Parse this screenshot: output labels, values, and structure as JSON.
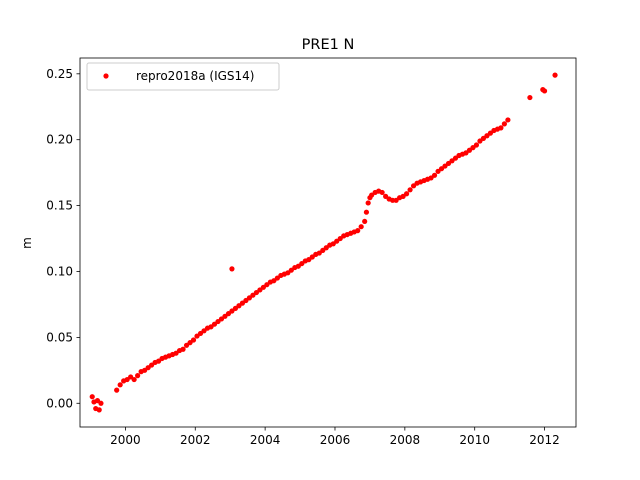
{
  "chart_data": {
    "type": "scatter",
    "title": "PRE1 N",
    "xlabel": "",
    "ylabel": "m",
    "xlim": [
      1998.7,
      2012.9
    ],
    "ylim": [
      -0.018,
      0.262
    ],
    "xticks": [
      2000,
      2002,
      2004,
      2006,
      2008,
      2010,
      2012
    ],
    "xtick_labels": [
      "2000",
      "2002",
      "2004",
      "2006",
      "2008",
      "2010",
      "2012"
    ],
    "yticks": [
      0.0,
      0.05,
      0.1,
      0.15,
      0.2,
      0.25
    ],
    "ytick_labels": [
      "0.00",
      "0.05",
      "0.10",
      "0.15",
      "0.20",
      "0.25"
    ],
    "grid": false,
    "legend_position": "top-left",
    "series": [
      {
        "name": "repro2018a (IGS14)",
        "color": "#ff0000",
        "marker": "dot",
        "points": [
          [
            1999.05,
            0.005
          ],
          [
            1999.1,
            0.001
          ],
          [
            1999.15,
            -0.004
          ],
          [
            1999.2,
            0.002
          ],
          [
            1999.25,
            -0.005
          ],
          [
            1999.3,
            0.0
          ],
          [
            1999.75,
            0.01
          ],
          [
            1999.85,
            0.014
          ],
          [
            1999.95,
            0.017
          ],
          [
            2000.05,
            0.018
          ],
          [
            2000.15,
            0.02
          ],
          [
            2000.25,
            0.018
          ],
          [
            2000.35,
            0.021
          ],
          [
            2000.45,
            0.024
          ],
          [
            2000.55,
            0.025
          ],
          [
            2000.65,
            0.027
          ],
          [
            2000.75,
            0.029
          ],
          [
            2000.85,
            0.031
          ],
          [
            2000.95,
            0.032
          ],
          [
            2001.05,
            0.034
          ],
          [
            2001.15,
            0.035
          ],
          [
            2001.25,
            0.036
          ],
          [
            2001.35,
            0.037
          ],
          [
            2001.45,
            0.038
          ],
          [
            2001.55,
            0.04
          ],
          [
            2001.65,
            0.041
          ],
          [
            2001.75,
            0.044
          ],
          [
            2001.85,
            0.046
          ],
          [
            2001.95,
            0.048
          ],
          [
            2002.05,
            0.051
          ],
          [
            2002.15,
            0.053
          ],
          [
            2002.25,
            0.055
          ],
          [
            2002.35,
            0.057
          ],
          [
            2002.45,
            0.058
          ],
          [
            2002.55,
            0.06
          ],
          [
            2002.65,
            0.062
          ],
          [
            2002.75,
            0.064
          ],
          [
            2002.85,
            0.066
          ],
          [
            2002.95,
            0.068
          ],
          [
            2003.05,
            0.102
          ],
          [
            2003.05,
            0.07
          ],
          [
            2003.15,
            0.072
          ],
          [
            2003.25,
            0.074
          ],
          [
            2003.35,
            0.076
          ],
          [
            2003.45,
            0.078
          ],
          [
            2003.55,
            0.08
          ],
          [
            2003.65,
            0.082
          ],
          [
            2003.75,
            0.084
          ],
          [
            2003.85,
            0.086
          ],
          [
            2003.95,
            0.088
          ],
          [
            2004.05,
            0.09
          ],
          [
            2004.15,
            0.092
          ],
          [
            2004.25,
            0.093
          ],
          [
            2004.35,
            0.095
          ],
          [
            2004.45,
            0.097
          ],
          [
            2004.55,
            0.098
          ],
          [
            2004.65,
            0.099
          ],
          [
            2004.75,
            0.101
          ],
          [
            2004.85,
            0.103
          ],
          [
            2004.95,
            0.104
          ],
          [
            2005.05,
            0.106
          ],
          [
            2005.15,
            0.108
          ],
          [
            2005.25,
            0.109
          ],
          [
            2005.35,
            0.111
          ],
          [
            2005.45,
            0.113
          ],
          [
            2005.55,
            0.114
          ],
          [
            2005.65,
            0.116
          ],
          [
            2005.75,
            0.118
          ],
          [
            2005.85,
            0.12
          ],
          [
            2005.95,
            0.121
          ],
          [
            2006.05,
            0.123
          ],
          [
            2006.15,
            0.125
          ],
          [
            2006.25,
            0.127
          ],
          [
            2006.35,
            0.128
          ],
          [
            2006.45,
            0.129
          ],
          [
            2006.55,
            0.13
          ],
          [
            2006.65,
            0.131
          ],
          [
            2006.75,
            0.134
          ],
          [
            2006.85,
            0.138
          ],
          [
            2006.9,
            0.145
          ],
          [
            2006.95,
            0.152
          ],
          [
            2007.0,
            0.156
          ],
          [
            2007.05,
            0.158
          ],
          [
            2007.15,
            0.16
          ],
          [
            2007.25,
            0.161
          ],
          [
            2007.35,
            0.16
          ],
          [
            2007.45,
            0.157
          ],
          [
            2007.55,
            0.155
          ],
          [
            2007.65,
            0.154
          ],
          [
            2007.75,
            0.154
          ],
          [
            2007.85,
            0.156
          ],
          [
            2007.95,
            0.157
          ],
          [
            2008.05,
            0.159
          ],
          [
            2008.15,
            0.162
          ],
          [
            2008.25,
            0.165
          ],
          [
            2008.35,
            0.167
          ],
          [
            2008.45,
            0.168
          ],
          [
            2008.55,
            0.169
          ],
          [
            2008.65,
            0.17
          ],
          [
            2008.75,
            0.171
          ],
          [
            2008.85,
            0.173
          ],
          [
            2008.95,
            0.176
          ],
          [
            2009.05,
            0.178
          ],
          [
            2009.15,
            0.18
          ],
          [
            2009.25,
            0.182
          ],
          [
            2009.35,
            0.184
          ],
          [
            2009.45,
            0.186
          ],
          [
            2009.55,
            0.188
          ],
          [
            2009.65,
            0.189
          ],
          [
            2009.75,
            0.19
          ],
          [
            2009.85,
            0.192
          ],
          [
            2009.95,
            0.194
          ],
          [
            2010.05,
            0.196
          ],
          [
            2010.15,
            0.199
          ],
          [
            2010.25,
            0.201
          ],
          [
            2010.35,
            0.203
          ],
          [
            2010.45,
            0.205
          ],
          [
            2010.55,
            0.207
          ],
          [
            2010.65,
            0.208
          ],
          [
            2010.75,
            0.209
          ],
          [
            2010.85,
            0.212
          ],
          [
            2010.95,
            0.215
          ],
          [
            2011.58,
            0.232
          ],
          [
            2011.95,
            0.238
          ],
          [
            2012.0,
            0.237
          ],
          [
            2012.3,
            0.249
          ]
        ]
      }
    ]
  }
}
